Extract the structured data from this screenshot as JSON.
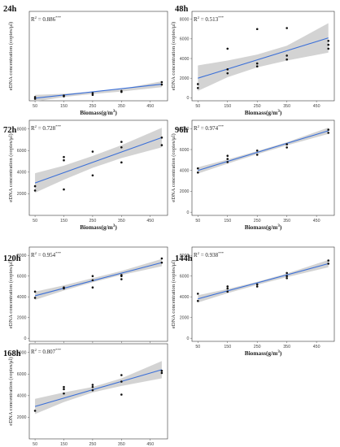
{
  "chart_data": [
    {
      "type": "scatter",
      "title": "24h",
      "r2_label": "R",
      "r2_exponent": "2",
      "r2_value": " = 0.886",
      "significance": "***",
      "xlabel": "Biomass(g/m",
      "xlabel_sup": "3",
      "xlabel_end": ")",
      "ylabel": "eDNA concentration (copies/μl)",
      "xlim": [
        30,
        510
      ],
      "ylim": [
        -300,
        8800
      ],
      "xticks": [
        50,
        150,
        250,
        350,
        450
      ],
      "yticks": [],
      "points": [
        [
          50,
          80
        ],
        [
          50,
          -90
        ],
        [
          150,
          150
        ],
        [
          150,
          230
        ],
        [
          250,
          300
        ],
        [
          250,
          480
        ],
        [
          350,
          600
        ],
        [
          350,
          700
        ],
        [
          490,
          1350
        ],
        [
          490,
          1600
        ]
      ],
      "fit": {
        "x": [
          50,
          490
        ],
        "y": [
          -40,
          1390
        ]
      },
      "ci": {
        "x": [
          50,
          150,
          250,
          350,
          490
        ],
        "lower": [
          -380,
          80,
          390,
          640,
          1090
        ],
        "upper": [
          300,
          410,
          620,
          910,
          1690
        ]
      }
    },
    {
      "type": "scatter",
      "title": "48h",
      "r2_label": "R",
      "r2_exponent": "2",
      "r2_value": " = 0.513",
      "significance": "***",
      "xlabel": "Biomass(g/m",
      "xlabel_sup": "3",
      "xlabel_end": ")",
      "ylabel": "eDNA concentration (copies/μl)",
      "xlim": [
        30,
        510
      ],
      "ylim": [
        -300,
        8800
      ],
      "xticks": [
        50,
        150,
        250,
        350,
        450
      ],
      "yticks": [
        0,
        2000,
        4000,
        6000,
        8000
      ],
      "points": [
        [
          50,
          1000
        ],
        [
          50,
          1400
        ],
        [
          150,
          2500
        ],
        [
          150,
          2900
        ],
        [
          150,
          5000
        ],
        [
          250,
          3200
        ],
        [
          250,
          3500
        ],
        [
          250,
          7000
        ],
        [
          350,
          3900
        ],
        [
          350,
          4300
        ],
        [
          350,
          7100
        ],
        [
          490,
          5000
        ],
        [
          490,
          5400
        ],
        [
          490,
          5800
        ]
      ],
      "fit": {
        "x": [
          50,
          490
        ],
        "y": [
          2000,
          6100
        ]
      },
      "ci": {
        "x": [
          50,
          150,
          250,
          350,
          490
        ],
        "lower": [
          700,
          2100,
          3100,
          3800,
          4600
        ],
        "upper": [
          3300,
          3800,
          4400,
          5300,
          7600
        ]
      }
    },
    {
      "type": "scatter",
      "title": "72h",
      "r2_label": "R",
      "r2_exponent": "2",
      "r2_value": " = 0.728",
      "significance": "***",
      "xlabel": "Biomass(g/m",
      "xlabel_sup": "3",
      "xlabel_end": ")",
      "ylabel": "eDNA concentration (copies/μl)",
      "xlim": [
        30,
        510
      ],
      "ylim": [
        0,
        8800
      ],
      "xticks": [
        50,
        150,
        250,
        350,
        450
      ],
      "yticks": [
        2000,
        4000,
        6000,
        8000
      ],
      "points": [
        [
          50,
          2300
        ],
        [
          50,
          2700
        ],
        [
          150,
          2400
        ],
        [
          150,
          5100
        ],
        [
          150,
          5400
        ],
        [
          250,
          3700
        ],
        [
          250,
          5900
        ],
        [
          350,
          4900
        ],
        [
          350,
          6300
        ],
        [
          350,
          6800
        ],
        [
          490,
          6500
        ],
        [
          490,
          7200
        ]
      ],
      "fit": {
        "x": [
          50,
          490
        ],
        "y": [
          3000,
          7200
        ]
      },
      "ci": {
        "x": [
          50,
          150,
          250,
          350,
          490
        ],
        "lower": [
          2100,
          3300,
          4400,
          5300,
          6300
        ],
        "upper": [
          3900,
          4600,
          5500,
          6500,
          8100
        ]
      }
    },
    {
      "type": "scatter",
      "title": "96h",
      "r2_label": "R",
      "r2_exponent": "2",
      "r2_value": " = 0.974",
      "significance": "***",
      "xlabel": "Biomass(g/m",
      "xlabel_sup": "3",
      "xlabel_end": ")",
      "ylabel": "eDNA concentration (copies/μl)",
      "xlim": [
        30,
        510
      ],
      "ylim": [
        -300,
        8800
      ],
      "xticks": [
        50,
        150,
        250,
        350,
        450
      ],
      "yticks": [
        0,
        2000,
        4000,
        6000,
        8000
      ],
      "points": [
        [
          50,
          3800
        ],
        [
          50,
          4200
        ],
        [
          150,
          4800
        ],
        [
          150,
          5100
        ],
        [
          150,
          5400
        ],
        [
          250,
          5500
        ],
        [
          250,
          5900
        ],
        [
          350,
          6200
        ],
        [
          350,
          6500
        ],
        [
          490,
          7600
        ],
        [
          490,
          7900
        ]
      ],
      "fit": {
        "x": [
          50,
          490
        ],
        "y": [
          4000,
          7800
        ]
      },
      "ci": {
        "x": [
          50,
          150,
          250,
          350,
          490
        ],
        "lower": [
          3700,
          4650,
          5550,
          6400,
          7500
        ],
        "upper": [
          4300,
          5050,
          5850,
          6700,
          8100
        ]
      }
    },
    {
      "type": "scatter",
      "title": "120h",
      "r2_label": "R",
      "r2_exponent": "2",
      "r2_value": " = 0.954",
      "significance": "***",
      "xlabel": "Biomass(g/m",
      "xlabel_sup": "3",
      "xlabel_end": ")",
      "ylabel": "eDNA concentration (copies/μl)",
      "xlim": [
        30,
        510
      ],
      "ylim": [
        -300,
        8800
      ],
      "xticks": [
        50,
        150,
        250,
        350,
        450
      ],
      "yticks": [
        0,
        2000,
        4000,
        6000,
        8000
      ],
      "points": [
        [
          50,
          3900
        ],
        [
          50,
          4500
        ],
        [
          150,
          4800
        ],
        [
          150,
          4900
        ],
        [
          250,
          4900
        ],
        [
          250,
          5600
        ],
        [
          250,
          6000
        ],
        [
          350,
          5700
        ],
        [
          350,
          6000
        ],
        [
          350,
          6100
        ],
        [
          490,
          7300
        ],
        [
          490,
          7700
        ]
      ],
      "fit": {
        "x": [
          50,
          490
        ],
        "y": [
          4100,
          7300
        ]
      },
      "ci": {
        "x": [
          50,
          150,
          250,
          350,
          490
        ],
        "lower": [
          3700,
          4600,
          5400,
          6100,
          6950
        ],
        "upper": [
          4500,
          5100,
          5800,
          6500,
          7650
        ]
      }
    },
    {
      "type": "scatter",
      "title": "144h",
      "r2_label": "R",
      "r2_exponent": "2",
      "r2_value": " = 0.938",
      "significance": "***",
      "xlabel": "Biomass(g/m",
      "xlabel_sup": "3",
      "xlabel_end": ")",
      "ylabel": "eDNA concentration (copies/μl)",
      "xlim": [
        30,
        510
      ],
      "ylim": [
        -300,
        8800
      ],
      "xticks": [
        50,
        150,
        250,
        350,
        450
      ],
      "yticks": [
        0,
        2000,
        4000,
        6000,
        8000
      ],
      "points": [
        [
          50,
          3600
        ],
        [
          50,
          4300
        ],
        [
          150,
          4500
        ],
        [
          150,
          4800
        ],
        [
          150,
          5000
        ],
        [
          250,
          5000
        ],
        [
          250,
          5200
        ],
        [
          350,
          5800
        ],
        [
          350,
          6000
        ],
        [
          350,
          6300
        ],
        [
          490,
          7200
        ],
        [
          490,
          7500
        ]
      ],
      "fit": {
        "x": [
          50,
          490
        ],
        "y": [
          3800,
          7200
        ]
      },
      "ci": {
        "x": [
          50,
          150,
          250,
          350,
          490
        ],
        "lower": [
          3450,
          4350,
          5150,
          5900,
          6850
        ],
        "upper": [
          4150,
          4750,
          5450,
          6250,
          7550
        ]
      }
    },
    {
      "type": "scatter",
      "title": "168h",
      "r2_label": "R",
      "r2_exponent": "2",
      "r2_value": " = 0.807",
      "significance": "***",
      "xlabel": "Biomass(g/m",
      "xlabel_sup": "3",
      "xlabel_end": ")",
      "ylabel": "eDNA concentration (copies/μl)",
      "xlim": [
        30,
        510
      ],
      "ylim": [
        0,
        8800
      ],
      "xticks": [
        50,
        150,
        250,
        350,
        450
      ],
      "yticks": [
        2000,
        4000,
        6000,
        8000
      ],
      "points": [
        [
          50,
          2600
        ],
        [
          150,
          4200
        ],
        [
          150,
          4600
        ],
        [
          150,
          4800
        ],
        [
          250,
          4500
        ],
        [
          250,
          4800
        ],
        [
          250,
          5000
        ],
        [
          350,
          4100
        ],
        [
          350,
          5300
        ],
        [
          350,
          5900
        ],
        [
          490,
          6100
        ],
        [
          490,
          6300
        ]
      ],
      "fit": {
        "x": [
          50,
          490
        ],
        "y": [
          3000,
          6400
        ]
      },
      "ci": {
        "x": [
          50,
          150,
          250,
          350,
          490
        ],
        "lower": [
          2300,
          3400,
          4300,
          4900,
          5600
        ],
        "upper": [
          3700,
          4300,
          4800,
          5600,
          7200
        ]
      }
    }
  ]
}
